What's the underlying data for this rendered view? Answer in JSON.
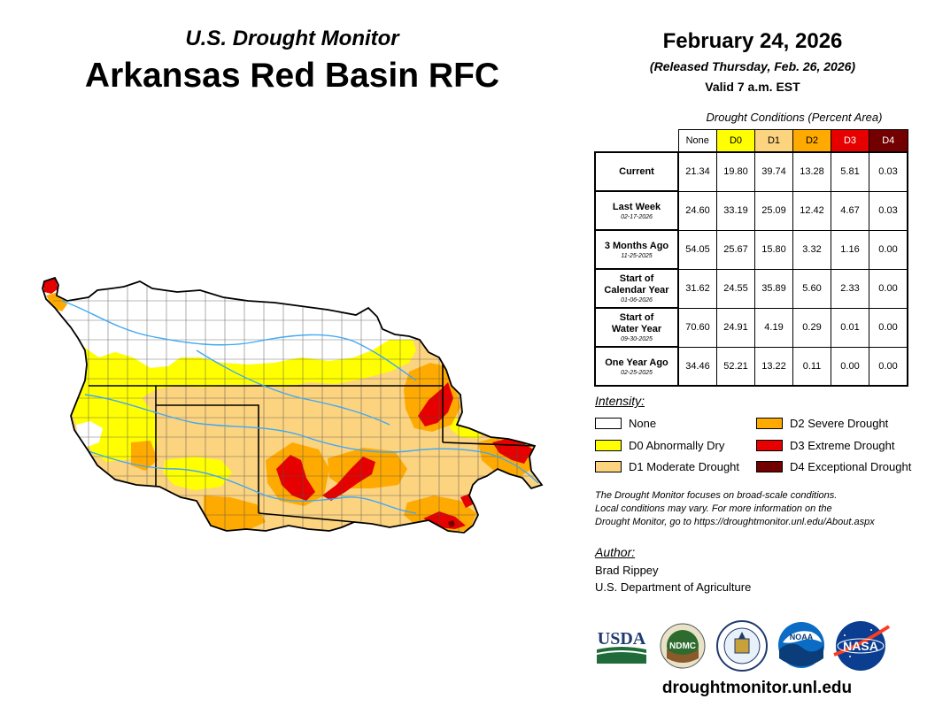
{
  "header": {
    "subtitle": "U.S. Drought Monitor",
    "title": "Arkansas Red Basin RFC",
    "date": "February 24, 2026",
    "released": "(Released Thursday, Feb. 26, 2026)",
    "valid": "Valid 7 a.m. EST"
  },
  "table": {
    "caption": "Drought Conditions (Percent Area)",
    "columns": [
      "None",
      "D0",
      "D1",
      "D2",
      "D3",
      "D4"
    ],
    "column_colors": [
      "#ffffff",
      "#ffff00",
      "#fcd37f",
      "#ffaa00",
      "#e60000",
      "#730000"
    ],
    "rows": [
      {
        "name": "Current",
        "date": "",
        "values": [
          "21.34",
          "19.80",
          "39.74",
          "13.28",
          "5.81",
          "0.03"
        ]
      },
      {
        "name": "Last Week",
        "date": "02-17-2026",
        "values": [
          "24.60",
          "33.19",
          "25.09",
          "12.42",
          "4.67",
          "0.03"
        ]
      },
      {
        "name": "3 Months Ago",
        "date": "11-25-2025",
        "values": [
          "54.05",
          "25.67",
          "15.80",
          "3.32",
          "1.16",
          "0.00"
        ]
      },
      {
        "name": "Start of Calendar Year",
        "date": "01-06-2026",
        "values": [
          "31.62",
          "24.55",
          "35.89",
          "5.60",
          "2.33",
          "0.00"
        ]
      },
      {
        "name": "Start of Water Year",
        "date": "09-30-2025",
        "values": [
          "70.60",
          "24.91",
          "4.19",
          "0.29",
          "0.01",
          "0.00"
        ]
      },
      {
        "name": "One Year Ago",
        "date": "02-25-2025",
        "values": [
          "34.46",
          "52.21",
          "13.22",
          "0.11",
          "0.00",
          "0.00"
        ]
      }
    ]
  },
  "legend": {
    "title": "Intensity:",
    "items": [
      {
        "label": "None",
        "color": "#ffffff"
      },
      {
        "label": "D0 Abnormally Dry",
        "color": "#ffff00"
      },
      {
        "label": "D1 Moderate Drought",
        "color": "#fcd37f"
      },
      {
        "label": "D2 Severe Drought",
        "color": "#ffaa00"
      },
      {
        "label": "D3 Extreme Drought",
        "color": "#e60000"
      },
      {
        "label": "D4 Exceptional Drought",
        "color": "#730000"
      }
    ]
  },
  "note": {
    "line1": "The Drought Monitor focuses on broad-scale conditions.",
    "line2": "Local conditions may vary. For more information on the",
    "line3": "Drought Monitor, go to https://droughtmonitor.unl.edu/About.aspx"
  },
  "author": {
    "title": "Author:",
    "name": "Brad Rippey",
    "org": "U.S. Department of Agriculture"
  },
  "logos": {
    "usda": "USDA",
    "ndmc": "NDMC",
    "noaa": "NOAA",
    "nasa": "NASA"
  },
  "website": "droughtmonitor.unl.edu",
  "map": {
    "river_color": "#3fa9f5",
    "border_color": "#000000"
  }
}
